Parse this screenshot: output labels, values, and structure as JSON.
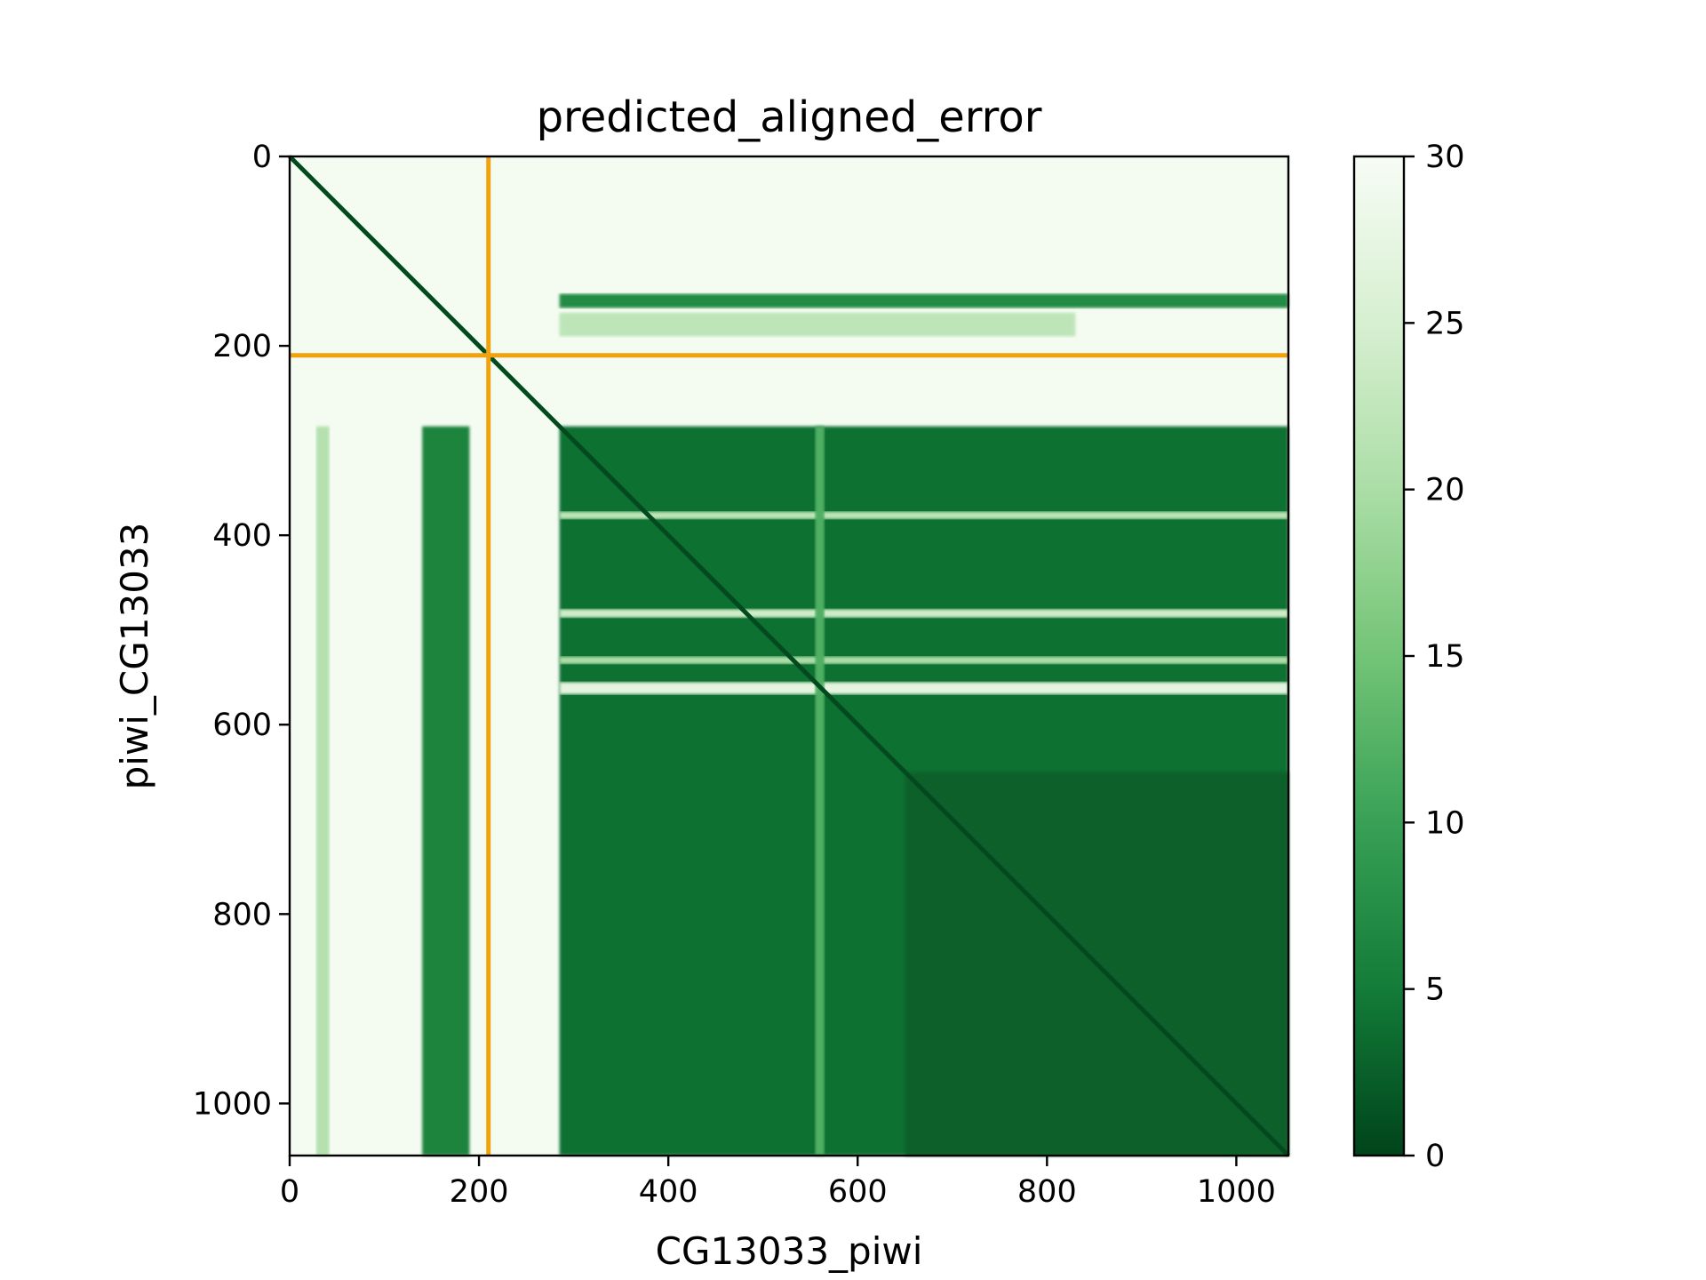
{
  "chart_data": {
    "type": "heatmap",
    "title": "predicted_aligned_error",
    "xlabel": "CG13033_piwi",
    "ylabel": "piwi_CG13033",
    "xlim": [
      0,
      1055
    ],
    "ylim": [
      1055,
      0
    ],
    "x_ticks": [
      "0",
      "200",
      "400",
      "600",
      "800",
      "1000"
    ],
    "y_ticks": [
      "0",
      "200",
      "400",
      "600",
      "800",
      "1000"
    ],
    "colorbar": {
      "min": 0,
      "max": 30,
      "ticks": [
        "0",
        "5",
        "10",
        "15",
        "20",
        "25",
        "30"
      ],
      "colormap": "Greens_r",
      "low_color": "#00441b",
      "high_color": "#f7fcf5"
    },
    "chain_boundary": 210,
    "boundary_color": "#f2a20c",
    "regions": [
      {
        "x": [
          0,
          1055
        ],
        "y": [
          0,
          1055
        ],
        "error": 29.5
      },
      {
        "x": [
          285,
          1055
        ],
        "y": [
          285,
          1055
        ],
        "error": 4
      },
      {
        "x": [
          140,
          190
        ],
        "y": [
          285,
          1055
        ],
        "error": 6
      },
      {
        "x": [
          28,
          42
        ],
        "y": [
          285,
          1055
        ],
        "error": 21
      },
      {
        "x": [
          285,
          1055
        ],
        "y": [
          145,
          160
        ],
        "error": 7
      },
      {
        "x": [
          285,
          830
        ],
        "y": [
          165,
          190
        ],
        "error": 22
      },
      {
        "x": [
          285,
          1055
        ],
        "y": [
          375,
          383
        ],
        "error": 22
      },
      {
        "x": [
          285,
          1055
        ],
        "y": [
          478,
          487
        ],
        "error": 24
      },
      {
        "x": [
          285,
          1055
        ],
        "y": [
          528,
          536
        ],
        "error": 20
      },
      {
        "x": [
          285,
          1055
        ],
        "y": [
          555,
          568
        ],
        "error": 27
      },
      {
        "x": [
          650,
          1055
        ],
        "y": [
          650,
          1055
        ],
        "error": 2.5
      },
      {
        "x": [
          555,
          565
        ],
        "y": [
          285,
          1055
        ],
        "error": 12
      }
    ]
  }
}
